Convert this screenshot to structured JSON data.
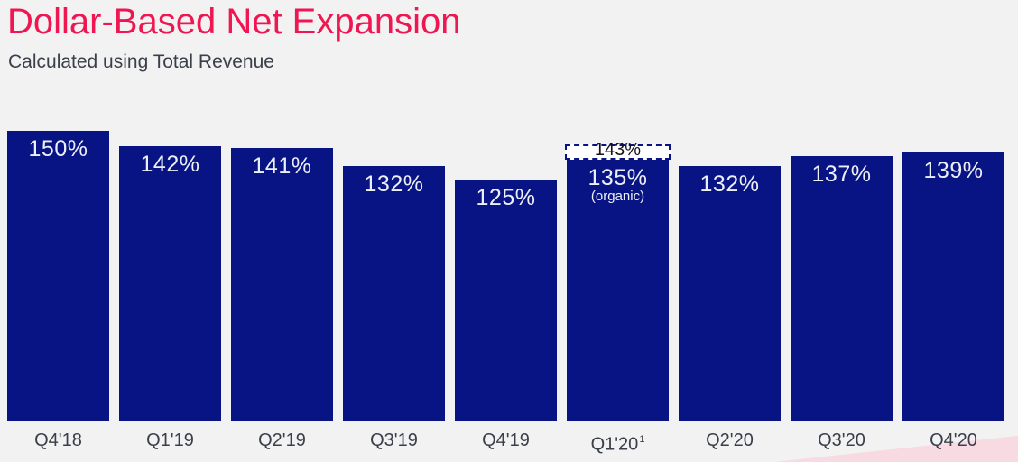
{
  "header": {
    "title": "Dollar-Based Net Expansion",
    "subtitle": "Calculated using Total Revenue"
  },
  "chart_data": {
    "type": "bar",
    "title": "Dollar-Based Net Expansion",
    "subtitle": "Calculated using Total Revenue",
    "xlabel": "",
    "ylabel": "",
    "ylim": [
      0,
      150
    ],
    "grid": false,
    "axes_drawn": false,
    "categories": [
      "Q4'18",
      "Q1'19",
      "Q2'19",
      "Q3'19",
      "Q4'19",
      "Q1'20",
      "Q2'20",
      "Q3'20",
      "Q4'20"
    ],
    "values": [
      150,
      142,
      141,
      132,
      125,
      135,
      132,
      137,
      139
    ],
    "bars": [
      {
        "category": "Q4'18",
        "value": 150,
        "display": "150%"
      },
      {
        "category": "Q1'19",
        "value": 142,
        "display": "142%"
      },
      {
        "category": "Q2'19",
        "value": 141,
        "display": "141%"
      },
      {
        "category": "Q3'19",
        "value": 132,
        "display": "132%"
      },
      {
        "category": "Q4'19",
        "value": 125,
        "display": "125%"
      },
      {
        "category": "Q1'20",
        "value": 135,
        "display": "135%",
        "sublabel": "(organic)",
        "footnote": "1",
        "ghost": {
          "value": 143,
          "display": "143%"
        }
      },
      {
        "category": "Q2'20",
        "value": 132,
        "display": "132%"
      },
      {
        "category": "Q3'20",
        "value": 137,
        "display": "137%"
      },
      {
        "category": "Q4'20",
        "value": 139,
        "display": "139%"
      }
    ]
  },
  "colors": {
    "background": "#F2F2F2",
    "bar_fill": "#081484",
    "title_accent": "#EF1651",
    "text_dark": "#3A3F49",
    "bar_value_text": "#EDEFF6",
    "ghost_fill": "#FFFFFF",
    "ghost_border": "#081484",
    "ghost_text": "#14141C",
    "wedge_pink": "#F8DAE2"
  }
}
